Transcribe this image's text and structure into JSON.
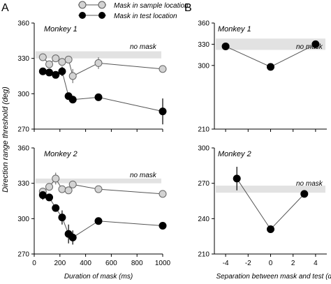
{
  "figure": {
    "panel_a_label": "A",
    "panel_b_label": "B",
    "y_axis_label": "Direction range  threshold (deg)",
    "no_mask_label": "no mask",
    "legend": {
      "sample": "Mask in sample location",
      "test": "Mask in test location"
    },
    "colors": {
      "sample_marker": "#d3d3d3",
      "test_marker": "#000000",
      "no_mask_band": "#e2e2e2",
      "line": "#555555"
    }
  },
  "chart_data": [
    {
      "id": "A1",
      "type": "line",
      "panel": "A",
      "title": "Monkey 1",
      "xlabel": "",
      "ylabel": "Direction range  threshold (deg)",
      "xlim": [
        0,
        1000
      ],
      "ylim": [
        270,
        360
      ],
      "xticks": [],
      "yticks": [
        270,
        300,
        330,
        360
      ],
      "no_mask_band": [
        330,
        336
      ],
      "series": [
        {
          "name": "Mask in sample location",
          "key": "sample",
          "x": [
            67,
            117,
            167,
            217,
            267,
            300,
            500,
            1000
          ],
          "y": [
            331,
            325,
            330,
            327,
            329,
            315,
            326,
            321
          ],
          "err": [
            3,
            3,
            3,
            3,
            3,
            6,
            5,
            2
          ]
        },
        {
          "name": "Mask in test location",
          "key": "test",
          "x": [
            67,
            117,
            167,
            217,
            267,
            300,
            500,
            1000
          ],
          "y": [
            319,
            318,
            316,
            319,
            298,
            295,
            297,
            285
          ],
          "err": [
            2,
            2,
            2,
            4,
            3,
            3,
            3,
            11
          ]
        }
      ]
    },
    {
      "id": "A2",
      "type": "line",
      "panel": "A",
      "title": "Monkey 2",
      "xlabel": "Duration of mask (ms)",
      "ylabel": "Direction range  threshold (deg)",
      "xlim": [
        0,
        1000
      ],
      "ylim": [
        270,
        360
      ],
      "xticks": [
        0,
        200,
        400,
        600,
        800,
        1000
      ],
      "yticks": [
        270,
        300,
        330,
        360
      ],
      "no_mask_band": [
        330,
        334
      ],
      "series": [
        {
          "name": "Mask in sample location",
          "key": "sample",
          "x": [
            67,
            117,
            167,
            217,
            267,
            300,
            500,
            1000
          ],
          "y": [
            323,
            327,
            334,
            325,
            324,
            329,
            325,
            321
          ],
          "err": [
            3,
            3,
            5,
            3,
            3,
            3,
            2,
            2
          ]
        },
        {
          "name": "Mask in test location",
          "key": "test",
          "x": [
            67,
            117,
            167,
            217,
            267,
            300,
            500,
            1000
          ],
          "y": [
            320,
            318,
            309,
            301,
            287,
            284,
            298,
            294
          ],
          "err": [
            4,
            3,
            2,
            6,
            8,
            6,
            2,
            2
          ]
        }
      ]
    },
    {
      "id": "B1",
      "type": "line",
      "panel": "B",
      "title": "Monkey 1",
      "xlabel": "",
      "xlim": [
        -5,
        5
      ],
      "ylim": [
        210,
        360
      ],
      "xticks": [],
      "yticks": [
        210,
        300,
        330,
        360
      ],
      "no_mask_band": [
        322,
        338
      ],
      "series": [
        {
          "name": "",
          "key": "test",
          "x": [
            -4,
            0,
            4
          ],
          "y": [
            327,
            298,
            330
          ],
          "err": [
            2,
            2,
            2
          ]
        }
      ]
    },
    {
      "id": "B2",
      "type": "line",
      "panel": "B",
      "title": "Monkey 2",
      "xlabel": "Separation  between mask and  test (deg)",
      "xlim": [
        -5,
        5
      ],
      "ylim": [
        210,
        300
      ],
      "xticks": [
        -4,
        -2,
        0,
        2,
        4
      ],
      "yticks": [
        210,
        240,
        270,
        300
      ],
      "no_mask_band": [
        262,
        268
      ],
      "series": [
        {
          "name": "",
          "key": "test",
          "x": [
            -3,
            0,
            3
          ],
          "y": [
            274,
            231,
            261
          ],
          "err": [
            10,
            3,
            1
          ]
        }
      ]
    }
  ]
}
